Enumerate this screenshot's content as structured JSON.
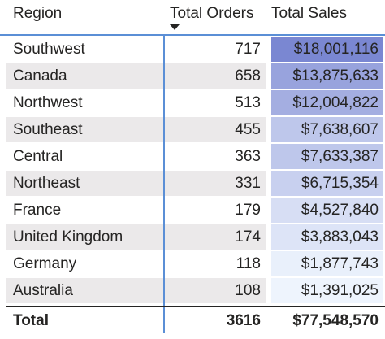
{
  "table": {
    "columns": {
      "region": "Region",
      "total_orders": "Total Orders",
      "total_sales": "Total Sales"
    },
    "sort": {
      "column": "Total Orders",
      "direction": "descending",
      "icon": "sort-descending-icon"
    },
    "rows": [
      {
        "region": "Southwest",
        "orders": "717",
        "sales": "$18,001,116",
        "heat": 1.0
      },
      {
        "region": "Canada",
        "orders": "658",
        "sales": "$13,875,633",
        "heat": 0.74
      },
      {
        "region": "Northwest",
        "orders": "513",
        "sales": "$12,004,822",
        "heat": 0.64
      },
      {
        "region": "Southeast",
        "orders": "455",
        "sales": "$7,638,607",
        "heat": 0.41
      },
      {
        "region": "Central",
        "orders": "363",
        "sales": "$7,633,387",
        "heat": 0.41
      },
      {
        "region": "Northeast",
        "orders": "331",
        "sales": "$6,715,354",
        "heat": 0.33
      },
      {
        "region": "France",
        "orders": "179",
        "sales": "$4,527,840",
        "heat": 0.2
      },
      {
        "region": "United Kingdom",
        "orders": "174",
        "sales": "$3,883,043",
        "heat": 0.15
      },
      {
        "region": "Germany",
        "orders": "118",
        "sales": "$1,877,743",
        "heat": 0.04
      },
      {
        "region": "Australia",
        "orders": "108",
        "sales": "$1,391,025",
        "heat": 0.0
      }
    ],
    "total": {
      "label": "Total",
      "orders": "3616",
      "sales": "$77,548,570"
    }
  },
  "colors": {
    "heat_low": "#eef4fd",
    "heat_high": "#7a87d2",
    "row_alt": "#ebe9ea",
    "accent_line": "#5b8fd6"
  }
}
